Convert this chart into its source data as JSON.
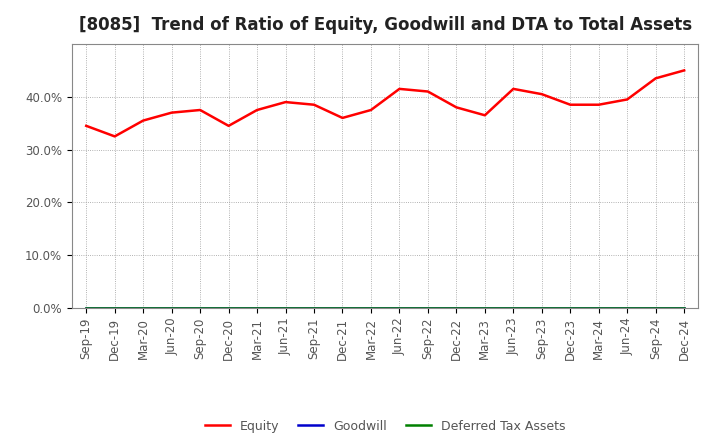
{
  "title": "[8085]  Trend of Ratio of Equity, Goodwill and DTA to Total Assets",
  "x_labels": [
    "Sep-19",
    "Dec-19",
    "Mar-20",
    "Jun-20",
    "Sep-20",
    "Dec-20",
    "Mar-21",
    "Jun-21",
    "Sep-21",
    "Dec-21",
    "Mar-22",
    "Jun-22",
    "Sep-22",
    "Dec-22",
    "Mar-23",
    "Jun-23",
    "Sep-23",
    "Dec-23",
    "Mar-24",
    "Jun-24",
    "Sep-24",
    "Dec-24"
  ],
  "equity": [
    34.5,
    32.5,
    35.5,
    37.0,
    37.5,
    34.5,
    37.5,
    39.0,
    38.5,
    36.0,
    37.5,
    41.5,
    41.0,
    38.0,
    36.5,
    41.5,
    40.5,
    38.5,
    38.5,
    39.5,
    43.5,
    45.0
  ],
  "goodwill": [
    0.0,
    0.0,
    0.0,
    0.0,
    0.0,
    0.0,
    0.0,
    0.0,
    0.0,
    0.0,
    0.0,
    0.0,
    0.0,
    0.0,
    0.0,
    0.0,
    0.0,
    0.0,
    0.0,
    0.0,
    0.0,
    0.0
  ],
  "dta": [
    0.0,
    0.0,
    0.0,
    0.0,
    0.0,
    0.0,
    0.0,
    0.0,
    0.0,
    0.0,
    0.0,
    0.0,
    0.0,
    0.0,
    0.0,
    0.0,
    0.0,
    0.0,
    0.0,
    0.0,
    0.0,
    0.0
  ],
  "equity_color": "#ff0000",
  "goodwill_color": "#0000cc",
  "dta_color": "#008000",
  "ylim": [
    0,
    50
  ],
  "yticks": [
    0,
    10,
    20,
    30,
    40
  ],
  "background_color": "#ffffff",
  "plot_bg_color": "#ffffff",
  "grid_color": "#999999",
  "title_fontsize": 12,
  "legend_labels": [
    "Equity",
    "Goodwill",
    "Deferred Tax Assets"
  ],
  "tick_fontsize": 8.5,
  "label_color": "#555555"
}
